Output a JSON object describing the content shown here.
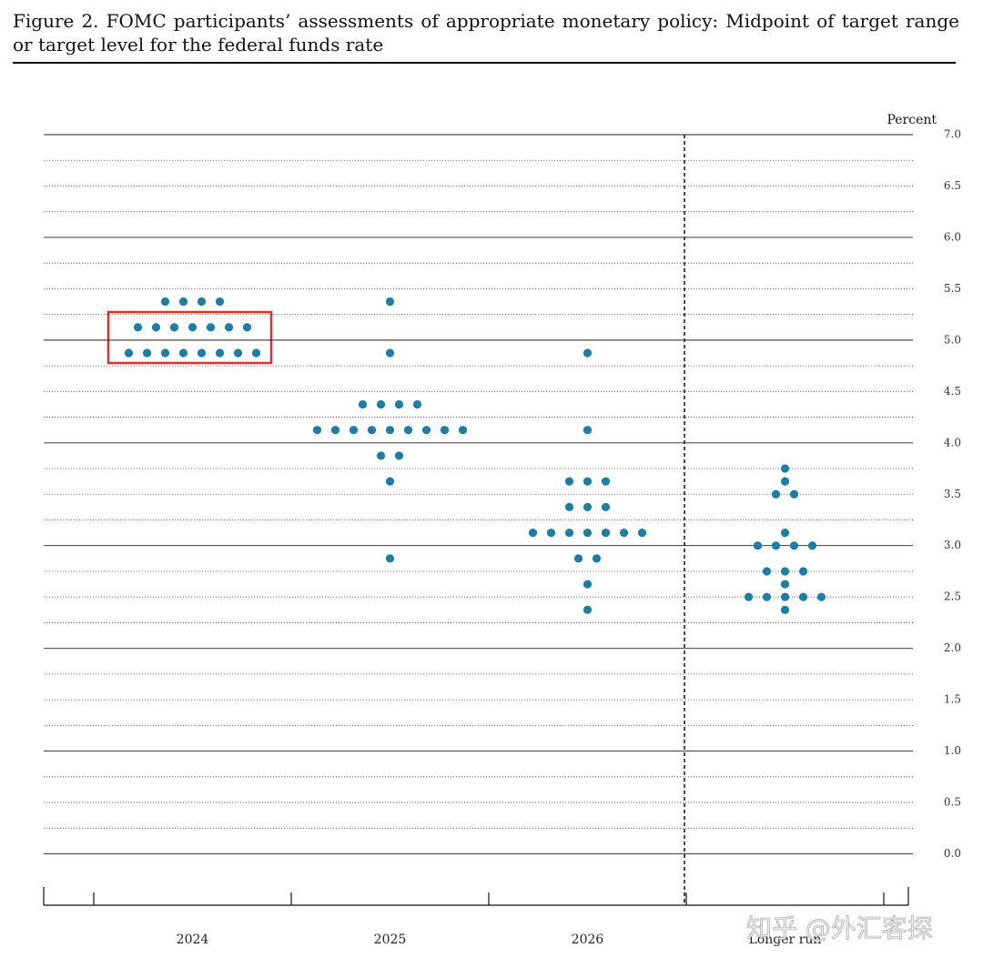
{
  "chart_data": {
    "type": "dot",
    "title": "Figure 2.  FOMC participants’ assessments of appropriate monetary policy: Midpoint of target range or target level for the federal funds rate",
    "y_label": "Percent",
    "watermark": "知乎 @外汇客探",
    "color": "#1b7ea6",
    "categories": [
      "2024",
      "2025",
      "2026",
      "Longer run"
    ],
    "values": [
      [
        5.375,
        5.375,
        5.375,
        5.375,
        5.125,
        5.125,
        5.125,
        5.125,
        5.125,
        5.125,
        5.125,
        4.875,
        4.875,
        4.875,
        4.875,
        4.875,
        4.875,
        4.875,
        4.875
      ],
      [
        5.375,
        4.875,
        4.375,
        4.375,
        4.375,
        4.375,
        4.125,
        4.125,
        4.125,
        4.125,
        4.125,
        4.125,
        4.125,
        4.125,
        4.125,
        3.875,
        3.875,
        3.625,
        2.875
      ],
      [
        4.875,
        4.125,
        3.625,
        3.625,
        3.625,
        3.375,
        3.375,
        3.375,
        3.125,
        3.125,
        3.125,
        3.125,
        3.125,
        3.125,
        3.125,
        2.875,
        2.875,
        2.625,
        2.375
      ],
      [
        3.75,
        3.625,
        3.5,
        3.5,
        3.125,
        3.0,
        3.0,
        3.0,
        3.0,
        2.75,
        2.75,
        2.75,
        2.625,
        2.5,
        2.5,
        2.5,
        2.5,
        2.5,
        2.375
      ]
    ],
    "ylim": [
      -0.5,
      7.0
    ],
    "yticks": [
      {
        "value": 0,
        "label": "0.0"
      },
      0.5,
      {
        "value": 1,
        "label": "1.0"
      },
      1.5,
      {
        "value": 2,
        "label": "2.0"
      },
      2.5,
      {
        "value": 3,
        "label": "3.0"
      },
      3.5,
      {
        "value": 4,
        "label": "4.0"
      },
      4.5,
      {
        "value": 5,
        "label": "5.0"
      },
      5.5,
      {
        "value": 6,
        "label": "6.0"
      },
      6.5,
      {
        "value": 7,
        "label": "7.0"
      }
    ],
    "yticks_minor": [
      0.25,
      0.75,
      1.25,
      1.75,
      2.25,
      2.75,
      3.25,
      3.75,
      4.25,
      4.75,
      5.25,
      5.75,
      6.25,
      6.75
    ],
    "grid": true
  }
}
